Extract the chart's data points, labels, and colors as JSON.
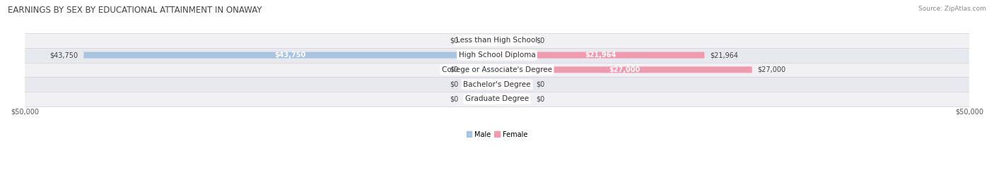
{
  "title": "EARNINGS BY SEX BY EDUCATIONAL ATTAINMENT IN ONAWAY",
  "source": "Source: ZipAtlas.com",
  "categories": [
    "Less than High School",
    "High School Diploma",
    "College or Associate's Degree",
    "Bachelor's Degree",
    "Graduate Degree"
  ],
  "male_values": [
    0,
    43750,
    0,
    0,
    0
  ],
  "female_values": [
    0,
    21964,
    27000,
    0,
    0
  ],
  "male_color": "#a8c4e0",
  "female_color": "#f09ab0",
  "row_bg_color_odd": "#f0f0f5",
  "row_bg_color_even": "#e8e8ef",
  "xlim": 50000,
  "stub_value": 3500,
  "legend_male_label": "Male",
  "legend_female_label": "Female",
  "title_fontsize": 8.5,
  "source_fontsize": 6.5,
  "label_fontsize": 7.0,
  "category_fontsize": 7.5,
  "value_fontsize": 7.0,
  "bar_height": 0.62
}
